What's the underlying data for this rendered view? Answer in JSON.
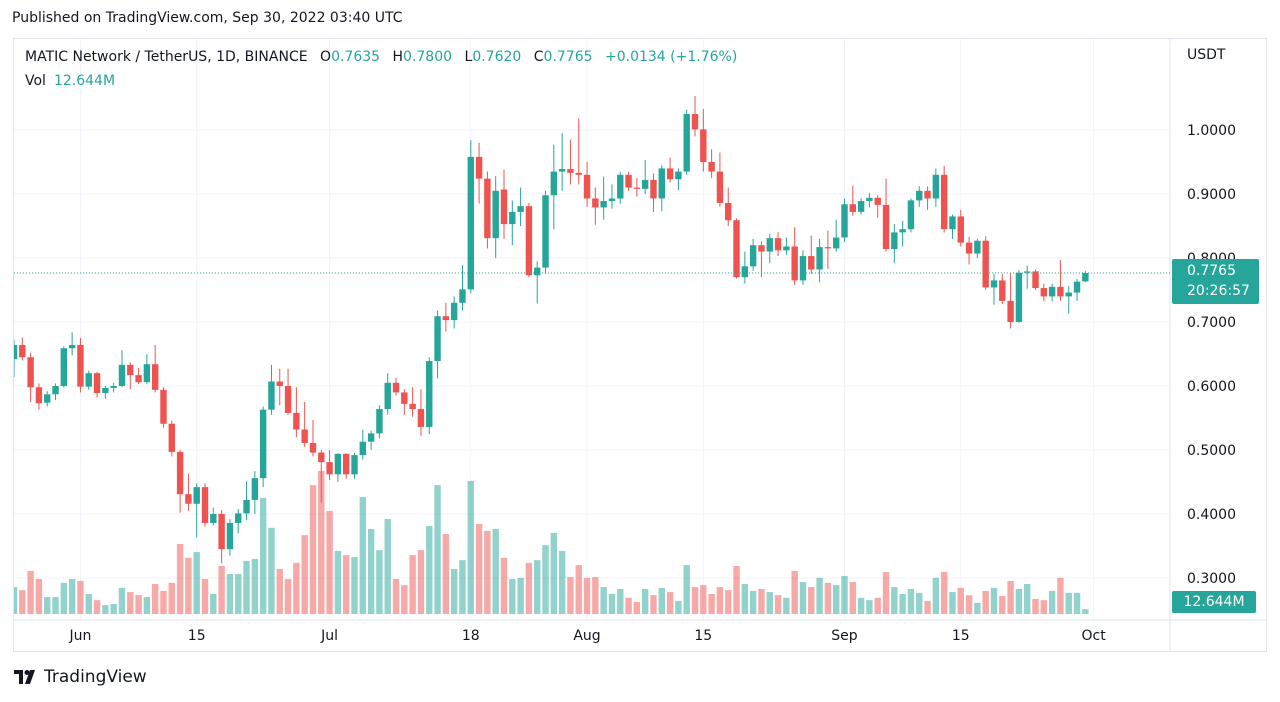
{
  "published": "Published on TradingView.com, Sep 30, 2022 03:40 UTC",
  "legend": {
    "symbol": "MATIC Network / TetherUS, 1D, BINANCE",
    "open_label": "O",
    "open": "0.7635",
    "high_label": "H",
    "high": "0.7800",
    "low_label": "L",
    "low": "0.7620",
    "close_label": "C",
    "close": "0.7765",
    "change": "+0.0134 (+1.76%)",
    "vol_label": "Vol",
    "vol": "12.644M"
  },
  "price_axis": {
    "currency": "USDT",
    "last_price": "0.7765",
    "countdown": "20:26:57",
    "volume_tag": "12.644M"
  },
  "logo": {
    "text": "TradingView"
  },
  "colors": {
    "up": "#26a69a",
    "down": "#ef5350",
    "grid": "#f0f3fa",
    "text": "#131722"
  },
  "chart_data": {
    "type": "candlestick",
    "title": "MATIC Network / TetherUS, 1D, BINANCE",
    "ylabel": "USDT",
    "ylim": [
      0.27,
      1.1
    ],
    "grid": true,
    "y_ticks": [
      "1.0000",
      "0.9000",
      "0.8000",
      "0.7000",
      "0.6000",
      "0.5000",
      "0.4000",
      "0.3000"
    ],
    "x_ticks": [
      {
        "label": "Jun",
        "date": "2022-06-01"
      },
      {
        "label": "15",
        "date": "2022-06-15"
      },
      {
        "label": "Jul",
        "date": "2022-07-01"
      },
      {
        "label": "18",
        "date": "2022-07-18"
      },
      {
        "label": "Aug",
        "date": "2022-08-01"
      },
      {
        "label": "15",
        "date": "2022-08-15"
      },
      {
        "label": "Sep",
        "date": "2022-09-01"
      },
      {
        "label": "15",
        "date": "2022-09-15"
      },
      {
        "label": "Oct",
        "date": "2022-10-01"
      }
    ],
    "columns": [
      "date",
      "open",
      "high",
      "low",
      "close",
      "volume_M"
    ],
    "candles": [
      [
        "2022-05-24",
        0.642,
        0.672,
        0.614,
        0.664,
        70
      ],
      [
        "2022-05-25",
        0.664,
        0.676,
        0.64,
        0.645,
        62
      ],
      [
        "2022-05-26",
        0.645,
        0.652,
        0.575,
        0.598,
        112
      ],
      [
        "2022-05-27",
        0.598,
        0.604,
        0.563,
        0.573,
        91
      ],
      [
        "2022-05-28",
        0.574,
        0.592,
        0.568,
        0.587,
        44
      ],
      [
        "2022-05-29",
        0.587,
        0.604,
        0.578,
        0.6,
        44
      ],
      [
        "2022-05-30",
        0.6,
        0.662,
        0.598,
        0.659,
        81
      ],
      [
        "2022-05-31",
        0.659,
        0.684,
        0.648,
        0.664,
        91
      ],
      [
        "2022-06-01",
        0.664,
        0.675,
        0.59,
        0.599,
        86
      ],
      [
        "2022-06-02",
        0.599,
        0.624,
        0.594,
        0.62,
        52
      ],
      [
        "2022-06-03",
        0.62,
        0.622,
        0.582,
        0.589,
        36
      ],
      [
        "2022-06-04",
        0.589,
        0.6,
        0.58,
        0.597,
        23
      ],
      [
        "2022-06-05",
        0.597,
        0.605,
        0.59,
        0.6,
        26
      ],
      [
        "2022-06-06",
        0.6,
        0.656,
        0.598,
        0.633,
        68
      ],
      [
        "2022-06-07",
        0.633,
        0.637,
        0.595,
        0.617,
        57
      ],
      [
        "2022-06-08",
        0.617,
        0.628,
        0.603,
        0.606,
        49
      ],
      [
        "2022-06-09",
        0.606,
        0.65,
        0.603,
        0.634,
        44
      ],
      [
        "2022-06-10",
        0.634,
        0.664,
        0.59,
        0.594,
        78
      ],
      [
        "2022-06-11",
        0.594,
        0.598,
        0.535,
        0.541,
        60
      ],
      [
        "2022-06-12",
        0.541,
        0.546,
        0.49,
        0.497,
        81
      ],
      [
        "2022-06-13",
        0.497,
        0.5,
        0.402,
        0.431,
        182
      ],
      [
        "2022-06-14",
        0.431,
        0.463,
        0.405,
        0.416,
        146
      ],
      [
        "2022-06-15",
        0.416,
        0.448,
        0.364,
        0.442,
        161
      ],
      [
        "2022-06-16",
        0.442,
        0.448,
        0.38,
        0.386,
        91
      ],
      [
        "2022-06-17",
        0.386,
        0.41,
        0.382,
        0.4,
        52
      ],
      [
        "2022-06-18",
        0.4,
        0.406,
        0.323,
        0.345,
        125
      ],
      [
        "2022-06-19",
        0.345,
        0.392,
        0.335,
        0.386,
        104
      ],
      [
        "2022-06-20",
        0.386,
        0.408,
        0.37,
        0.401,
        104
      ],
      [
        "2022-06-21",
        0.401,
        0.451,
        0.39,
        0.422,
        138
      ],
      [
        "2022-06-22",
        0.422,
        0.467,
        0.4,
        0.456,
        143
      ],
      [
        "2022-06-23",
        0.456,
        0.568,
        0.442,
        0.563,
        302
      ],
      [
        "2022-06-24",
        0.563,
        0.633,
        0.555,
        0.607,
        224
      ],
      [
        "2022-06-25",
        0.607,
        0.627,
        0.57,
        0.6,
        117
      ],
      [
        "2022-06-26",
        0.6,
        0.627,
        0.555,
        0.558,
        91
      ],
      [
        "2022-06-27",
        0.558,
        0.598,
        0.52,
        0.532,
        133
      ],
      [
        "2022-06-28",
        0.532,
        0.575,
        0.505,
        0.511,
        205
      ],
      [
        "2022-06-29",
        0.511,
        0.547,
        0.49,
        0.496,
        335
      ],
      [
        "2022-06-30",
        0.496,
        0.5,
        0.418,
        0.481,
        372
      ],
      [
        "2022-07-01",
        0.481,
        0.5,
        0.453,
        0.462,
        268
      ],
      [
        "2022-07-02",
        0.462,
        0.495,
        0.45,
        0.494,
        164
      ],
      [
        "2022-07-03",
        0.494,
        0.495,
        0.455,
        0.462,
        153
      ],
      [
        "2022-07-04",
        0.462,
        0.495,
        0.455,
        0.492,
        148
      ],
      [
        "2022-07-05",
        0.492,
        0.532,
        0.485,
        0.513,
        304
      ],
      [
        "2022-07-06",
        0.513,
        0.53,
        0.5,
        0.526,
        221
      ],
      [
        "2022-07-07",
        0.526,
        0.57,
        0.518,
        0.564,
        166
      ],
      [
        "2022-07-08",
        0.564,
        0.62,
        0.555,
        0.605,
        247
      ],
      [
        "2022-07-09",
        0.605,
        0.613,
        0.585,
        0.59,
        91
      ],
      [
        "2022-07-10",
        0.59,
        0.595,
        0.555,
        0.572,
        75
      ],
      [
        "2022-07-11",
        0.572,
        0.598,
        0.552,
        0.564,
        153
      ],
      [
        "2022-07-12",
        0.564,
        0.595,
        0.522,
        0.536,
        166
      ],
      [
        "2022-07-13",
        0.536,
        0.645,
        0.525,
        0.639,
        229
      ],
      [
        "2022-07-14",
        0.639,
        0.718,
        0.612,
        0.709,
        335
      ],
      [
        "2022-07-15",
        0.709,
        0.73,
        0.685,
        0.703,
        208
      ],
      [
        "2022-07-16",
        0.703,
        0.74,
        0.69,
        0.73,
        117
      ],
      [
        "2022-07-17",
        0.73,
        0.789,
        0.718,
        0.751,
        140
      ],
      [
        "2022-07-18",
        0.751,
        0.984,
        0.745,
        0.958,
        346
      ],
      [
        "2022-07-19",
        0.958,
        0.98,
        0.885,
        0.924,
        234
      ],
      [
        "2022-07-20",
        0.924,
        0.935,
        0.815,
        0.831,
        216
      ],
      [
        "2022-07-21",
        0.831,
        0.928,
        0.8,
        0.905,
        221
      ],
      [
        "2022-07-22",
        0.907,
        0.938,
        0.83,
        0.853,
        146
      ],
      [
        "2022-07-23",
        0.853,
        0.89,
        0.82,
        0.872,
        91
      ],
      [
        "2022-07-24",
        0.872,
        0.91,
        0.85,
        0.881,
        94
      ],
      [
        "2022-07-25",
        0.881,
        0.886,
        0.77,
        0.773,
        133
      ],
      [
        "2022-07-26",
        0.773,
        0.795,
        0.729,
        0.785,
        140
      ],
      [
        "2022-07-27",
        0.785,
        0.905,
        0.775,
        0.898,
        179
      ],
      [
        "2022-07-28",
        0.898,
        0.977,
        0.845,
        0.935,
        211
      ],
      [
        "2022-07-29",
        0.935,
        0.995,
        0.905,
        0.939,
        164
      ],
      [
        "2022-07-30",
        0.939,
        0.985,
        0.915,
        0.933,
        96
      ],
      [
        "2022-07-31",
        0.933,
        1.018,
        0.915,
        0.93,
        127
      ],
      [
        "2022-08-01",
        0.93,
        0.95,
        0.88,
        0.893,
        94
      ],
      [
        "2022-08-02",
        0.893,
        0.91,
        0.852,
        0.879,
        96
      ],
      [
        "2022-08-03",
        0.879,
        0.927,
        0.86,
        0.889,
        70
      ],
      [
        "2022-08-04",
        0.889,
        0.915,
        0.877,
        0.893,
        52
      ],
      [
        "2022-08-05",
        0.893,
        0.935,
        0.885,
        0.93,
        65
      ],
      [
        "2022-08-06",
        0.93,
        0.935,
        0.905,
        0.91,
        42
      ],
      [
        "2022-08-07",
        0.91,
        0.925,
        0.896,
        0.908,
        31
      ],
      [
        "2022-08-08",
        0.908,
        0.953,
        0.9,
        0.922,
        65
      ],
      [
        "2022-08-09",
        0.922,
        0.932,
        0.872,
        0.893,
        49
      ],
      [
        "2022-08-10",
        0.893,
        0.945,
        0.873,
        0.94,
        68
      ],
      [
        "2022-08-11",
        0.94,
        0.957,
        0.918,
        0.923,
        57
      ],
      [
        "2022-08-12",
        0.923,
        0.94,
        0.906,
        0.935,
        34
      ],
      [
        "2022-08-13",
        0.935,
        1.032,
        0.93,
        1.025,
        127
      ],
      [
        "2022-08-14",
        1.025,
        1.053,
        0.99,
        1.001,
        70
      ],
      [
        "2022-08-15",
        1.001,
        1.033,
        0.935,
        0.95,
        75
      ],
      [
        "2022-08-16",
        0.95,
        0.97,
        0.925,
        0.935,
        52
      ],
      [
        "2022-08-17",
        0.935,
        0.965,
        0.88,
        0.886,
        70
      ],
      [
        "2022-08-18",
        0.886,
        0.91,
        0.85,
        0.859,
        62
      ],
      [
        "2022-08-19",
        0.859,
        0.862,
        0.768,
        0.77,
        125
      ],
      [
        "2022-08-20",
        0.77,
        0.81,
        0.76,
        0.787,
        78
      ],
      [
        "2022-08-21",
        0.787,
        0.83,
        0.78,
        0.82,
        60
      ],
      [
        "2022-08-22",
        0.82,
        0.826,
        0.77,
        0.81,
        65
      ],
      [
        "2022-08-23",
        0.81,
        0.838,
        0.792,
        0.831,
        57
      ],
      [
        "2022-08-24",
        0.831,
        0.84,
        0.803,
        0.812,
        49
      ],
      [
        "2022-08-25",
        0.812,
        0.832,
        0.805,
        0.818,
        42
      ],
      [
        "2022-08-26",
        0.818,
        0.848,
        0.758,
        0.765,
        112
      ],
      [
        "2022-08-27",
        0.765,
        0.812,
        0.758,
        0.803,
        83
      ],
      [
        "2022-08-28",
        0.803,
        0.835,
        0.775,
        0.782,
        70
      ],
      [
        "2022-08-29",
        0.782,
        0.83,
        0.762,
        0.817,
        94
      ],
      [
        "2022-08-30",
        0.817,
        0.843,
        0.783,
        0.815,
        81
      ],
      [
        "2022-08-31",
        0.815,
        0.86,
        0.81,
        0.832,
        75
      ],
      [
        "2022-09-01",
        0.832,
        0.893,
        0.825,
        0.884,
        99
      ],
      [
        "2022-09-02",
        0.884,
        0.913,
        0.866,
        0.872,
        83
      ],
      [
        "2022-09-03",
        0.872,
        0.893,
        0.868,
        0.889,
        42
      ],
      [
        "2022-09-04",
        0.889,
        0.902,
        0.879,
        0.894,
        36
      ],
      [
        "2022-09-05",
        0.894,
        0.898,
        0.863,
        0.883,
        42
      ],
      [
        "2022-09-06",
        0.883,
        0.924,
        0.81,
        0.814,
        109
      ],
      [
        "2022-09-07",
        0.814,
        0.853,
        0.792,
        0.84,
        70
      ],
      [
        "2022-09-08",
        0.84,
        0.858,
        0.818,
        0.845,
        52
      ],
      [
        "2022-09-09",
        0.845,
        0.893,
        0.84,
        0.89,
        65
      ],
      [
        "2022-09-10",
        0.89,
        0.912,
        0.88,
        0.905,
        55
      ],
      [
        "2022-09-11",
        0.905,
        0.912,
        0.875,
        0.893,
        34
      ],
      [
        "2022-09-12",
        0.893,
        0.94,
        0.88,
        0.93,
        94
      ],
      [
        "2022-09-13",
        0.93,
        0.944,
        0.84,
        0.845,
        109
      ],
      [
        "2022-09-14",
        0.845,
        0.868,
        0.83,
        0.865,
        57
      ],
      [
        "2022-09-15",
        0.865,
        0.875,
        0.818,
        0.824,
        68
      ],
      [
        "2022-09-16",
        0.824,
        0.833,
        0.79,
        0.807,
        49
      ],
      [
        "2022-09-17",
        0.807,
        0.83,
        0.8,
        0.827,
        29
      ],
      [
        "2022-09-18",
        0.827,
        0.834,
        0.75,
        0.754,
        60
      ],
      [
        "2022-09-19",
        0.754,
        0.775,
        0.727,
        0.765,
        68
      ],
      [
        "2022-09-20",
        0.765,
        0.775,
        0.728,
        0.733,
        47
      ],
      [
        "2022-09-21",
        0.733,
        0.776,
        0.69,
        0.7,
        86
      ],
      [
        "2022-09-22",
        0.7,
        0.781,
        0.699,
        0.777,
        65
      ],
      [
        "2022-09-23",
        0.777,
        0.788,
        0.752,
        0.779,
        78
      ],
      [
        "2022-09-24",
        0.779,
        0.782,
        0.75,
        0.753,
        39
      ],
      [
        "2022-09-25",
        0.753,
        0.76,
        0.732,
        0.74,
        36
      ],
      [
        "2022-09-26",
        0.74,
        0.76,
        0.732,
        0.755,
        60
      ],
      [
        "2022-09-27",
        0.755,
        0.797,
        0.733,
        0.74,
        94
      ],
      [
        "2022-09-28",
        0.74,
        0.756,
        0.713,
        0.746,
        55
      ],
      [
        "2022-09-29",
        0.746,
        0.767,
        0.733,
        0.763,
        55
      ],
      [
        "2022-09-30",
        0.7635,
        0.78,
        0.762,
        0.7765,
        12.644
      ]
    ]
  }
}
